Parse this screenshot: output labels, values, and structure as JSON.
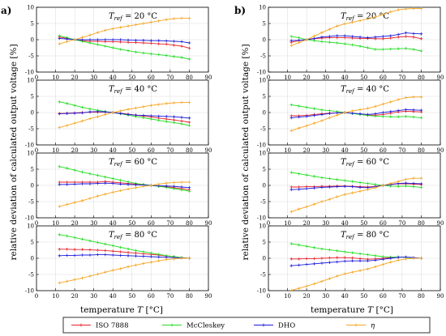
{
  "chart_data": {
    "type": "line",
    "panel_labels": [
      "a)",
      "b)"
    ],
    "ylabel": "relative deviation of calculated output voltage [%]",
    "xlabel_main": "temperature",
    "xlabel_italic": "T",
    "xlabel_unit": "[°C]",
    "xlim": [
      0,
      90
    ],
    "ylim": [
      -10,
      10
    ],
    "xticks": [
      0,
      10,
      20,
      30,
      40,
      50,
      60,
      70,
      80,
      90
    ],
    "yticks": [
      -10,
      -5,
      0,
      5,
      10
    ],
    "x": [
      12,
      16,
      20,
      24,
      28,
      32,
      36,
      40,
      44,
      48,
      52,
      56,
      60,
      64,
      68,
      72,
      76,
      80
    ],
    "legend": [
      {
        "label": "ISO 7888",
        "color": "#e8202a"
      },
      {
        "label": "McCleskey",
        "color": "#22dd22"
      },
      {
        "label": "DHO",
        "color": "#1c1cdc"
      },
      {
        "label": "η",
        "color": "#f5a623"
      }
    ],
    "panels": [
      {
        "column": 0,
        "row": 0,
        "label": {
          "base": "T",
          "sub": "ref",
          "value": " = 20 °C"
        },
        "series": [
          {
            "name": "ISO 7888",
            "color": "#e8202a",
            "values": [
              0.8,
              0.4,
              0,
              -0.3,
              -0.5,
              -0.5,
              -0.6,
              -0.6,
              -0.7,
              -0.8,
              -0.9,
              -1.0,
              -1.1,
              -1.3,
              -1.4,
              -1.7,
              -2.0,
              -2.6
            ]
          },
          {
            "name": "McCleskey",
            "color": "#22dd22",
            "values": [
              1.2,
              0.6,
              0,
              -0.5,
              -1.0,
              -1.5,
              -2.0,
              -2.5,
              -3.0,
              -3.4,
              -3.8,
              -4.1,
              -4.4,
              -4.6,
              -4.9,
              -5.2,
              -5.5,
              -6.0
            ]
          },
          {
            "name": "DHO",
            "color": "#1c1cdc",
            "values": [
              0.4,
              0.2,
              0,
              0.0,
              0.0,
              0.0,
              0.0,
              0.0,
              0.0,
              -0.1,
              -0.2,
              -0.2,
              -0.3,
              -0.3,
              -0.4,
              -0.5,
              -0.6,
              -1.0
            ]
          },
          {
            "name": "η",
            "color": "#f5a623",
            "values": [
              -1.3,
              -0.6,
              0,
              0.7,
              1.4,
              2.2,
              2.9,
              3.4,
              3.8,
              4.2,
              4.6,
              5.0,
              5.4,
              5.8,
              6.2,
              6.5,
              6.6,
              6.6
            ]
          }
        ]
      },
      {
        "column": 0,
        "row": 1,
        "label": {
          "base": "T",
          "sub": "ref",
          "value": " = 40 °C"
        },
        "series": [
          {
            "name": "ISO 7888",
            "color": "#e8202a",
            "values": [
              -0.3,
              -0.2,
              -0.1,
              0.0,
              0.1,
              0.1,
              0.1,
              0.0,
              -0.2,
              -0.5,
              -0.8,
              -1.1,
              -1.4,
              -1.7,
              -2.0,
              -2.3,
              -2.6,
              -3.0
            ]
          },
          {
            "name": "McCleskey",
            "color": "#22dd22",
            "values": [
              3.3,
              2.8,
              2.2,
              1.6,
              1.1,
              0.7,
              0.3,
              0.0,
              -0.4,
              -0.8,
              -1.2,
              -1.6,
              -2.0,
              -2.4,
              -2.8,
              -3.1,
              -3.5,
              -4.0
            ]
          },
          {
            "name": "DHO",
            "color": "#1c1cdc",
            "values": [
              -0.4,
              -0.3,
              -0.2,
              -0.1,
              0.2,
              0.3,
              0.2,
              0.0,
              -0.3,
              -0.6,
              -0.8,
              -0.9,
              -1.0,
              -1.1,
              -1.2,
              -1.3,
              -1.5,
              -1.7
            ]
          },
          {
            "name": "η",
            "color": "#f5a623",
            "values": [
              -4.6,
              -4.0,
              -3.3,
              -2.6,
              -1.9,
              -1.3,
              -0.6,
              0.0,
              0.5,
              1.0,
              1.4,
              1.8,
              2.2,
              2.5,
              2.8,
              3.0,
              3.1,
              3.1
            ]
          }
        ]
      },
      {
        "column": 0,
        "row": 2,
        "label": {
          "base": "T",
          "sub": "ref",
          "value": " = 60 °C"
        },
        "series": [
          {
            "name": "ISO 7888",
            "color": "#e8202a",
            "values": [
              1.0,
              1.0,
              1.0,
              1.0,
              1.0,
              1.0,
              1.2,
              1.0,
              0.8,
              0.6,
              0.4,
              0.2,
              0.0,
              -0.2,
              -0.4,
              -0.7,
              -1.0,
              -1.4
            ]
          },
          {
            "name": "McCleskey",
            "color": "#22dd22",
            "values": [
              5.8,
              5.3,
              4.7,
              4.1,
              3.6,
              3.1,
              2.6,
              2.1,
              1.6,
              1.1,
              0.6,
              0.3,
              0.0,
              -0.3,
              -0.6,
              -1.0,
              -1.4,
              -1.8
            ]
          },
          {
            "name": "DHO",
            "color": "#1c1cdc",
            "values": [
              0.3,
              0.3,
              0.4,
              0.5,
              0.5,
              0.6,
              0.7,
              0.6,
              0.4,
              0.3,
              0.2,
              0.1,
              0.0,
              -0.1,
              -0.2,
              -0.3,
              -0.5,
              -0.7
            ]
          },
          {
            "name": "η",
            "color": "#f5a623",
            "values": [
              -6.5,
              -5.9,
              -5.3,
              -4.7,
              -4.0,
              -3.3,
              -2.7,
              -2.1,
              -1.6,
              -1.1,
              -0.7,
              -0.3,
              0.0,
              0.4,
              0.7,
              0.9,
              1.0,
              1.0
            ]
          }
        ]
      },
      {
        "column": 0,
        "row": 3,
        "label": {
          "base": "T",
          "sub": "ref",
          "value": " = 80 °C"
        },
        "series": [
          {
            "name": "ISO 7888",
            "color": "#e8202a",
            "values": [
              2.8,
              2.8,
              2.7,
              2.7,
              2.6,
              2.5,
              2.4,
              2.2,
              2.0,
              1.8,
              1.6,
              1.4,
              1.2,
              1.0,
              0.7,
              0.5,
              0.2,
              0.0
            ]
          },
          {
            "name": "McCleskey",
            "color": "#22dd22",
            "values": [
              7.3,
              6.9,
              6.4,
              5.9,
              5.4,
              4.9,
              4.4,
              3.9,
              3.4,
              2.9,
              2.4,
              2.0,
              1.6,
              1.2,
              0.8,
              0.5,
              0.2,
              0.0
            ]
          },
          {
            "name": "DHO",
            "color": "#1c1cdc",
            "values": [
              0.8,
              0.9,
              0.9,
              1.0,
              1.0,
              1.1,
              1.1,
              1.0,
              0.9,
              0.8,
              0.7,
              0.6,
              0.5,
              0.4,
              0.3,
              0.2,
              0.1,
              0.0
            ]
          },
          {
            "name": "η",
            "color": "#f5a623",
            "values": [
              -7.6,
              -7.1,
              -6.6,
              -6.1,
              -5.5,
              -4.9,
              -4.3,
              -3.7,
              -3.2,
              -2.6,
              -2.1,
              -1.6,
              -1.2,
              -0.8,
              -0.4,
              -0.2,
              0.0,
              0.0
            ]
          }
        ]
      },
      {
        "column": 1,
        "row": 0,
        "label": {
          "base": "T",
          "sub": "ref",
          "value": " = 20 °C"
        },
        "series": [
          {
            "name": "ISO 7888",
            "color": "#e8202a",
            "values": [
              -0.8,
              -0.3,
              0,
              0.3,
              0.5,
              0.6,
              0.6,
              0.6,
              0.5,
              0.4,
              0.4,
              0.3,
              0.3,
              0.5,
              0.8,
              1.0,
              0.8,
              0.3
            ]
          },
          {
            "name": "McCleskey",
            "color": "#22dd22",
            "values": [
              1.0,
              0.6,
              0,
              -0.3,
              -0.6,
              -0.8,
              -1.0,
              -1.3,
              -1.6,
              -2.0,
              -2.5,
              -3.0,
              -3.0,
              -2.9,
              -2.8,
              -2.7,
              -3.0,
              -3.5
            ]
          },
          {
            "name": "DHO",
            "color": "#1c1cdc",
            "values": [
              -0.3,
              -0.2,
              0,
              0.4,
              0.8,
              1.0,
              1.2,
              1.2,
              1.0,
              0.8,
              0.6,
              0.8,
              1.0,
              1.2,
              1.6,
              2.1,
              1.9,
              1.8
            ]
          },
          {
            "name": "η",
            "color": "#f5a623",
            "values": [
              -1.8,
              -0.9,
              0,
              1.1,
              2.2,
              3.2,
              4.2,
              4.9,
              5.4,
              5.9,
              6.4,
              7.0,
              7.8,
              8.6,
              9.2,
              9.5,
              9.6,
              9.6
            ]
          }
        ]
      },
      {
        "column": 1,
        "row": 1,
        "label": {
          "base": "T",
          "sub": "ref",
          "value": " = 40 °C"
        },
        "series": [
          {
            "name": "ISO 7888",
            "color": "#e8202a",
            "values": [
              -1.0,
              -1.0,
              -0.9,
              -0.6,
              -0.4,
              -0.2,
              -0.1,
              0.0,
              -0.2,
              -0.5,
              -0.8,
              -0.8,
              -0.6,
              -0.2,
              0.2,
              0.4,
              0.3,
              0.2
            ]
          },
          {
            "name": "McCleskey",
            "color": "#22dd22",
            "values": [
              2.4,
              2.0,
              1.6,
              1.2,
              0.8,
              0.6,
              0.3,
              0.0,
              -0.3,
              -0.6,
              -0.9,
              -1.1,
              -1.2,
              -1.3,
              -1.3,
              -1.2,
              -1.4,
              -1.6
            ]
          },
          {
            "name": "DHO",
            "color": "#1c1cdc",
            "values": [
              -1.6,
              -1.4,
              -1.2,
              -0.9,
              -0.6,
              -0.3,
              -0.1,
              0.0,
              -0.2,
              -0.4,
              -0.6,
              -0.4,
              0.0,
              0.3,
              0.6,
              0.9,
              0.8,
              0.7
            ]
          },
          {
            "name": "η",
            "color": "#f5a623",
            "values": [
              -5.6,
              -4.8,
              -4.1,
              -3.3,
              -2.5,
              -1.6,
              -0.8,
              0.0,
              0.5,
              0.9,
              1.3,
              1.9,
              2.6,
              3.3,
              4.0,
              4.6,
              4.8,
              4.8
            ]
          }
        ]
      },
      {
        "column": 1,
        "row": 2,
        "label": {
          "base": "T",
          "sub": "ref",
          "value": " = 60 °C"
        },
        "series": [
          {
            "name": "ISO 7888",
            "color": "#e8202a",
            "values": [
              -0.5,
              -0.5,
              -0.4,
              -0.4,
              -0.3,
              -0.3,
              -0.2,
              -0.2,
              -0.3,
              -0.4,
              -0.5,
              -0.3,
              0.0,
              0.3,
              0.5,
              0.5,
              0.4,
              0.3
            ]
          },
          {
            "name": "McCleskey",
            "color": "#22dd22",
            "values": [
              4.0,
              3.6,
              3.2,
              2.8,
              2.4,
              2.1,
              1.8,
              1.5,
              1.2,
              0.9,
              0.6,
              0.3,
              0.0,
              -0.2,
              -0.3,
              -0.2,
              -0.4,
              -0.6
            ]
          },
          {
            "name": "DHO",
            "color": "#1c1cdc",
            "values": [
              -1.3,
              -1.2,
              -1.0,
              -0.8,
              -0.6,
              -0.5,
              -0.4,
              -0.3,
              -0.4,
              -0.6,
              -0.7,
              -0.4,
              0.0,
              0.3,
              0.6,
              0.7,
              0.6,
              0.5
            ]
          },
          {
            "name": "η",
            "color": "#f5a623",
            "values": [
              -8.1,
              -7.3,
              -6.6,
              -5.8,
              -5.0,
              -4.3,
              -3.5,
              -2.8,
              -2.3,
              -1.8,
              -1.3,
              -0.7,
              0.0,
              0.6,
              1.2,
              1.9,
              2.2,
              2.2
            ]
          }
        ]
      },
      {
        "column": 1,
        "row": 3,
        "label": {
          "base": "T",
          "sub": "ref",
          "value": " = 80 °C"
        },
        "series": [
          {
            "name": "ISO 7888",
            "color": "#e8202a",
            "values": [
              -0.2,
              -0.2,
              -0.1,
              -0.1,
              0.0,
              0.1,
              0.2,
              0.2,
              0.1,
              -0.1,
              -0.3,
              -0.2,
              0.0,
              0.2,
              0.4,
              0.3,
              0.1,
              0.0
            ]
          },
          {
            "name": "McCleskey",
            "color": "#22dd22",
            "values": [
              4.5,
              4.1,
              3.7,
              3.3,
              2.9,
              2.6,
              2.3,
              2.0,
              1.7,
              1.4,
              1.1,
              0.8,
              0.5,
              0.4,
              0.4,
              0.3,
              0.1,
              0.0
            ]
          },
          {
            "name": "DHO",
            "color": "#1c1cdc",
            "values": [
              -2.3,
              -2.1,
              -1.9,
              -1.7,
              -1.5,
              -1.3,
              -1.1,
              -0.9,
              -0.8,
              -0.8,
              -0.8,
              -0.6,
              -0.3,
              0.0,
              0.3,
              0.4,
              0.2,
              0.0
            ]
          },
          {
            "name": "η",
            "color": "#f5a623",
            "values": [
              -9.9,
              -9.3,
              -8.6,
              -7.9,
              -7.1,
              -6.3,
              -5.5,
              -4.8,
              -4.3,
              -3.8,
              -3.3,
              -2.6,
              -1.9,
              -1.2,
              -0.6,
              -0.2,
              0.0,
              0.0
            ]
          }
        ]
      }
    ]
  }
}
